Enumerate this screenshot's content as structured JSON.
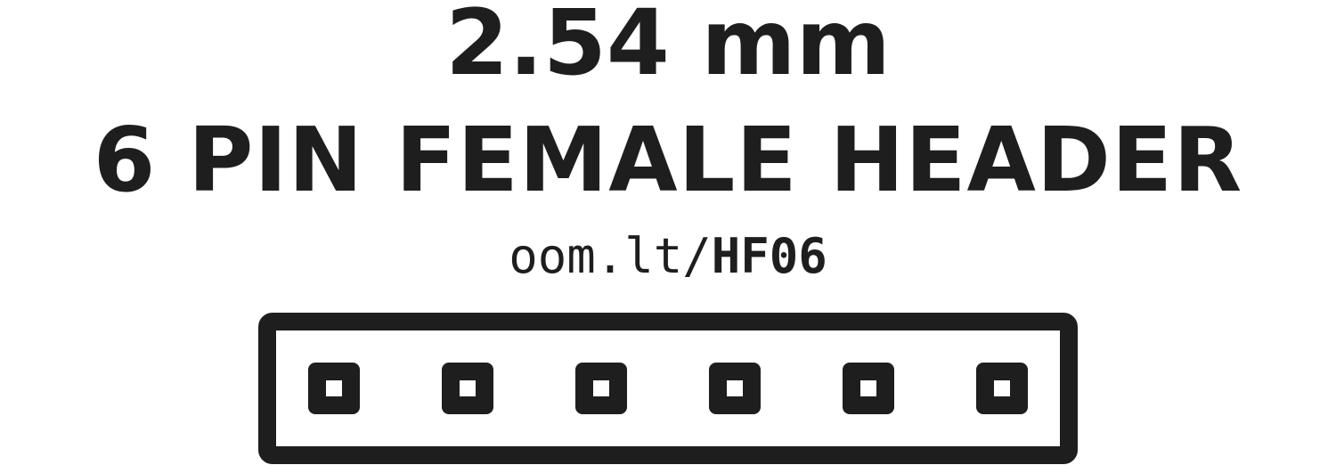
{
  "header": {
    "pitch": "2.54 mm",
    "product": "6 PIN FEMALE HEADER",
    "url_prefix": "oom.lt/",
    "url_code": "HF06"
  },
  "diagram": {
    "pin_count": 6,
    "stroke_color": "#1e1e1e"
  }
}
